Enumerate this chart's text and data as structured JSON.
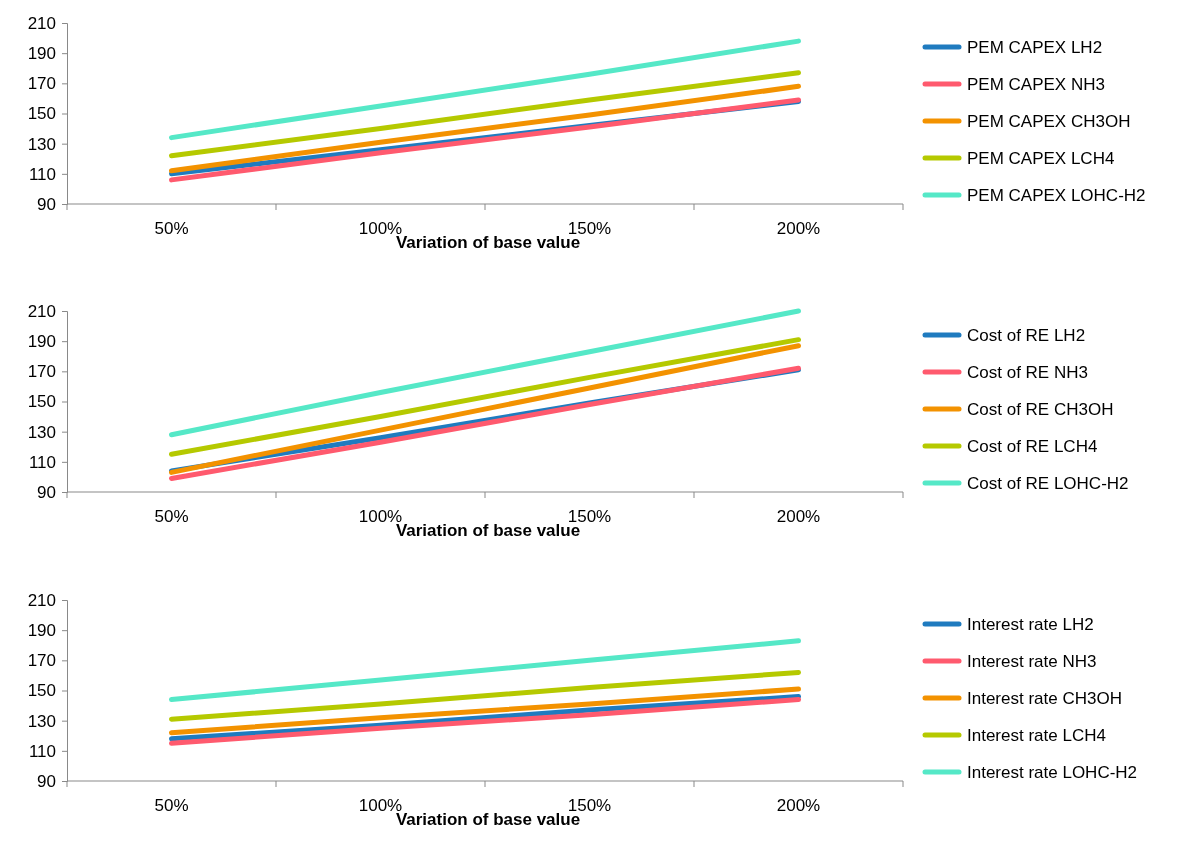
{
  "chart_data": [
    {
      "type": "line",
      "xlabel": "Variation of base value",
      "categories": [
        "50%",
        "100%",
        "150%",
        "200%"
      ],
      "ylim": [
        90,
        210
      ],
      "yticks": [
        90,
        110,
        130,
        150,
        170,
        190,
        210
      ],
      "grid": false,
      "legend": "right",
      "marker": "none",
      "line_style": "solid",
      "series": [
        {
          "name": "PEM CAPEX LH2",
          "color": "#1f7bbf",
          "values": [
            110,
            126,
            142,
            158
          ]
        },
        {
          "name": "PEM CAPEX NH3",
          "color": "#ff5a6e",
          "values": [
            106,
            124,
            141,
            159
          ]
        },
        {
          "name": "PEM CAPEX CH3OH",
          "color": "#f39200",
          "values": [
            112,
            131,
            149,
            168
          ]
        },
        {
          "name": "PEM CAPEX LCH4",
          "color": "#b5c900",
          "values": [
            122,
            140,
            159,
            177
          ]
        },
        {
          "name": "PEM CAPEX LOHC-H2",
          "color": "#55e8c7",
          "values": [
            134,
            155,
            176,
            198
          ]
        }
      ]
    },
    {
      "type": "line",
      "xlabel": "Variation of base value",
      "categories": [
        "50%",
        "100%",
        "150%",
        "200%"
      ],
      "ylim": [
        90,
        210
      ],
      "yticks": [
        90,
        110,
        130,
        150,
        170,
        190,
        210
      ],
      "grid": false,
      "legend": "right",
      "marker": "none",
      "line_style": "solid",
      "series": [
        {
          "name": "Cost of RE LH2",
          "color": "#1f7bbf",
          "values": [
            104,
            126,
            149,
            171
          ]
        },
        {
          "name": "Cost of RE NH3",
          "color": "#ff5a6e",
          "values": [
            99,
            123,
            148,
            172
          ]
        },
        {
          "name": "Cost of RE CH3OH",
          "color": "#f39200",
          "values": [
            103,
            131,
            159,
            187
          ]
        },
        {
          "name": "Cost of RE LCH4",
          "color": "#b5c900",
          "values": [
            115,
            140,
            166,
            191
          ]
        },
        {
          "name": "Cost of RE LOHC-H2",
          "color": "#55e8c7",
          "values": [
            128,
            156,
            183,
            210
          ]
        }
      ]
    },
    {
      "type": "line",
      "xlabel": "Variation of base value",
      "categories": [
        "50%",
        "100%",
        "150%",
        "200%"
      ],
      "ylim": [
        90,
        210
      ],
      "yticks": [
        90,
        110,
        130,
        150,
        170,
        190,
        210
      ],
      "grid": false,
      "legend": "right",
      "marker": "none",
      "line_style": "solid",
      "series": [
        {
          "name": "Interest rate LH2",
          "color": "#1f7bbf",
          "values": [
            118,
            127,
            137,
            146
          ]
        },
        {
          "name": "Interest rate NH3",
          "color": "#ff5a6e",
          "values": [
            115,
            125,
            134,
            144
          ]
        },
        {
          "name": "Interest rate CH3OH",
          "color": "#f39200",
          "values": [
            122,
            132,
            141,
            151
          ]
        },
        {
          "name": "Interest rate LCH4",
          "color": "#b5c900",
          "values": [
            131,
            141,
            152,
            162
          ]
        },
        {
          "name": "Interest rate LOHC-H2",
          "color": "#55e8c7",
          "values": [
            144,
            157,
            170,
            183
          ]
        }
      ]
    }
  ]
}
